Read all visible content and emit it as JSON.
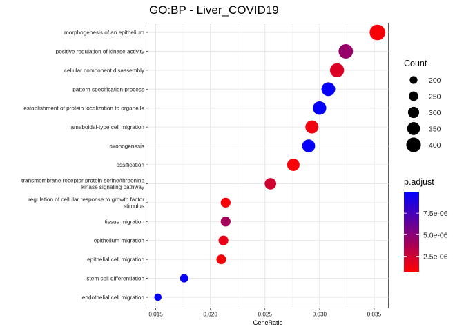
{
  "chart_data": {
    "type": "scatter",
    "title": "GO:BP - Liver_COVID19",
    "xlabel": "GeneRatio",
    "ylabel": "",
    "xlim": [
      0.0143,
      0.0363
    ],
    "xticks": [
      "0.015",
      "0.020",
      "0.025",
      "0.030",
      "0.035"
    ],
    "xtick_values": [
      0.015,
      0.02,
      0.025,
      0.03,
      0.035
    ],
    "grid": true,
    "legend_position": "right",
    "points": [
      {
        "term": "morphogenesis of an epithelium",
        "term_lines": [
          "morphogenesis of an epithelium"
        ],
        "gene_ratio": 0.0353,
        "count": 430,
        "p_adjust": 1e-06
      },
      {
        "term": "positive regulation of kinase activity",
        "term_lines": [
          "positive regulation of kinase activity"
        ],
        "gene_ratio": 0.0324,
        "count": 395,
        "p_adjust": 4.5e-06
      },
      {
        "term": "cellular component disassembly",
        "term_lines": [
          "cellular component disassembly"
        ],
        "gene_ratio": 0.0316,
        "count": 385,
        "p_adjust": 2e-06
      },
      {
        "term": "pattern specification process",
        "term_lines": [
          "pattern specification process"
        ],
        "gene_ratio": 0.0308,
        "count": 375,
        "p_adjust": 9.8e-06
      },
      {
        "term": "establishment of protein localization to organelle",
        "term_lines": [
          "establishment of protein localization to organelle"
        ],
        "gene_ratio": 0.03,
        "count": 365,
        "p_adjust": 9.8e-06
      },
      {
        "term": "ameboidal-type cell migration",
        "term_lines": [
          "ameboidal-type cell migration"
        ],
        "gene_ratio": 0.0293,
        "count": 355,
        "p_adjust": 1.2e-06
      },
      {
        "term": "axonogenesis",
        "term_lines": [
          "axonogenesis"
        ],
        "gene_ratio": 0.029,
        "count": 350,
        "p_adjust": 9.8e-06
      },
      {
        "term": "ossification",
        "term_lines": [
          "ossification"
        ],
        "gene_ratio": 0.0276,
        "count": 335,
        "p_adjust": 1e-06
      },
      {
        "term": "transmembrane receptor protein serine/threonine kinase signaling pathway",
        "term_lines": [
          "transmembrane receptor protein serine/threonine",
          "kinase signaling pathway"
        ],
        "gene_ratio": 0.0255,
        "count": 310,
        "p_adjust": 2.5e-06
      },
      {
        "term": "regulation of cellular response to growth factor stimulus",
        "term_lines": [
          "regulation of cellular response to growth factor",
          "stimulus"
        ],
        "gene_ratio": 0.0214,
        "count": 260,
        "p_adjust": 1e-06
      },
      {
        "term": "tissue migration",
        "term_lines": [
          "tissue migration"
        ],
        "gene_ratio": 0.0214,
        "count": 260,
        "p_adjust": 4e-06
      },
      {
        "term": "epithelium migration",
        "term_lines": [
          "epithelium migration"
        ],
        "gene_ratio": 0.0212,
        "count": 258,
        "p_adjust": 1.5e-06
      },
      {
        "term": "epithelial cell migration",
        "term_lines": [
          "epithelial cell migration"
        ],
        "gene_ratio": 0.021,
        "count": 255,
        "p_adjust": 1e-06
      },
      {
        "term": "stem cell differentiation",
        "term_lines": [
          "stem cell differentiation"
        ],
        "gene_ratio": 0.0176,
        "count": 215,
        "p_adjust": 9.8e-06
      },
      {
        "term": "endothelial cell migration",
        "term_lines": [
          "endothelial cell migration"
        ],
        "gene_ratio": 0.0152,
        "count": 185,
        "p_adjust": 9.8e-06
      }
    ],
    "size_legend": {
      "title": "Count",
      "breaks": [
        200,
        250,
        300,
        350,
        400
      ],
      "labels": [
        "200",
        "250",
        "300",
        "350",
        "400"
      ]
    },
    "color_legend": {
      "title": "p.adjust",
      "low_color": "#FF0000",
      "high_color": "#0000FF",
      "range": [
        7e-07,
        1e-05
      ],
      "breaks": [
        2.5e-06,
        5e-06,
        7.5e-06
      ],
      "labels": [
        "2.5e-06",
        "5.0e-06",
        "7.5e-06"
      ]
    }
  }
}
